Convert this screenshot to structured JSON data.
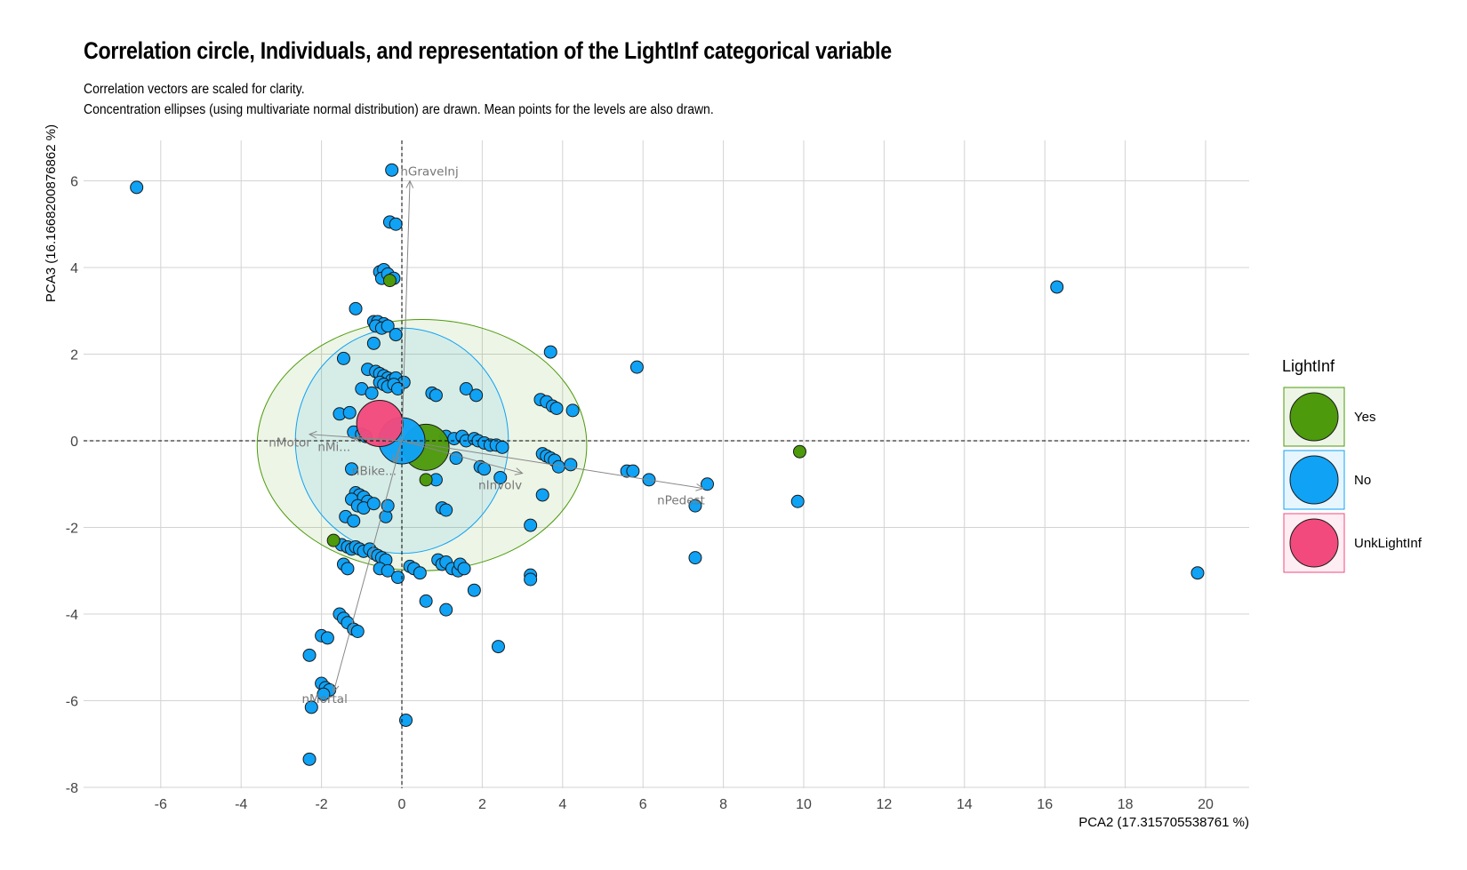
{
  "title": "Correlation circle, Individuals, and representation of the LightInf categorical variable",
  "subtitle_lines": [
    "Correlation vectors are scaled for clarity.",
    "Concentration ellipses (using multivariate normal distribution) are drawn. Mean points for the levels are also drawn."
  ],
  "chart_data": {
    "type": "scatter",
    "xlabel": "PCA2 (17.315705538761 %)",
    "ylabel": "PCA3 (16.1668200876862 %)",
    "xlim": [
      -8,
      21
    ],
    "ylim": [
      -8,
      7
    ],
    "x_ticks": [
      -6,
      -4,
      -2,
      0,
      2,
      4,
      6,
      8,
      10,
      12,
      14,
      16,
      18,
      20
    ],
    "y_ticks": [
      -8,
      -6,
      -4,
      -2,
      0,
      2,
      4,
      6
    ],
    "grid": true,
    "legend": {
      "title": "LightInf",
      "position": "right",
      "items": [
        {
          "label": "Yes",
          "color": "#4d9a0c"
        },
        {
          "label": "No",
          "color": "#0fa2f5"
        },
        {
          "label": "UnkLightInf",
          "color": "#f24a7d"
        }
      ]
    },
    "colors": {
      "Yes": "#4d9a0c",
      "No": "#0fa2f5",
      "UnkLightInf": "#f24a7d",
      "arrow": "#888888",
      "grid": "#d3d3d3"
    },
    "ellipses": [
      {
        "level": "Yes",
        "cx": 0.5,
        "cy": -0.1,
        "rx": 4.1,
        "ry": 2.9,
        "fill": "rgba(77,154,12,0.10)",
        "stroke": "#4d9a0c"
      },
      {
        "level": "No",
        "cx": 0.0,
        "cy": 0.0,
        "rx": 2.65,
        "ry": 2.6,
        "fill": "rgba(15,162,245,0.10)",
        "stroke": "#0fa2f5"
      }
    ],
    "mean_points": [
      {
        "level": "Yes",
        "x": 0.6,
        "y": -0.15
      },
      {
        "level": "No",
        "x": 0.0,
        "y": 0.0
      },
      {
        "level": "UnkLightInf",
        "x": -0.55,
        "y": 0.4
      }
    ],
    "vectors": [
      {
        "label": "nGraveInj",
        "x": 0.2,
        "y": 6.0
      },
      {
        "label": "nMotor",
        "x": -2.3,
        "y": 0.15
      },
      {
        "label": "nMi...",
        "x": -1.2,
        "y": 0.05
      },
      {
        "label": "nBike...",
        "x": -0.2,
        "y": -0.5
      },
      {
        "label": "nInvolv",
        "x": 3.0,
        "y": -0.75
      },
      {
        "label": "nPedest",
        "x": 7.5,
        "y": -1.1
      },
      {
        "label": "nMortal",
        "x": -1.7,
        "y": -5.8
      }
    ],
    "points_yes": [
      {
        "x": -0.3,
        "y": 3.7
      },
      {
        "x": 9.9,
        "y": -0.25
      },
      {
        "x": 0.6,
        "y": -0.9
      },
      {
        "x": -1.7,
        "y": -2.3
      }
    ],
    "points_no": [
      [
        -6.6,
        5.85
      ],
      [
        -0.25,
        6.25
      ],
      [
        -0.3,
        5.05
      ],
      [
        -0.15,
        5.0
      ],
      [
        -0.55,
        3.9
      ],
      [
        -0.45,
        3.95
      ],
      [
        -0.5,
        3.75
      ],
      [
        -0.35,
        3.85
      ],
      [
        -0.2,
        3.75
      ],
      [
        -1.15,
        3.05
      ],
      [
        -0.7,
        2.75
      ],
      [
        -0.6,
        2.75
      ],
      [
        -0.45,
        2.7
      ],
      [
        -0.65,
        2.65
      ],
      [
        -0.5,
        2.6
      ],
      [
        -0.35,
        2.65
      ],
      [
        -0.15,
        2.45
      ],
      [
        -0.7,
        2.25
      ],
      [
        -1.45,
        1.9
      ],
      [
        -0.85,
        1.65
      ],
      [
        -0.65,
        1.6
      ],
      [
        -0.55,
        1.55
      ],
      [
        -0.45,
        1.5
      ],
      [
        -0.35,
        1.45
      ],
      [
        -0.25,
        1.4
      ],
      [
        -0.15,
        1.45
      ],
      [
        0.05,
        1.35
      ],
      [
        -0.55,
        1.35
      ],
      [
        -0.45,
        1.3
      ],
      [
        -0.35,
        1.25
      ],
      [
        -0.2,
        1.3
      ],
      [
        -0.1,
        1.2
      ],
      [
        -1.0,
        1.2
      ],
      [
        -0.75,
        1.1
      ],
      [
        0.75,
        1.1
      ],
      [
        0.85,
        1.05
      ],
      [
        1.6,
        1.2
      ],
      [
        1.85,
        1.05
      ],
      [
        3.7,
        2.05
      ],
      [
        5.85,
        1.7
      ],
      [
        16.3,
        3.55
      ],
      [
        3.45,
        0.95
      ],
      [
        3.6,
        0.9
      ],
      [
        3.75,
        0.8
      ],
      [
        3.85,
        0.75
      ],
      [
        4.25,
        0.7
      ],
      [
        -1.55,
        0.62
      ],
      [
        -1.3,
        0.65
      ],
      [
        -1.2,
        0.2
      ],
      [
        -1.0,
        0.15
      ],
      [
        -0.9,
        0.1
      ],
      [
        1.1,
        0.1
      ],
      [
        1.3,
        0.05
      ],
      [
        1.5,
        0.1
      ],
      [
        1.6,
        0.0
      ],
      [
        1.8,
        0.05
      ],
      [
        1.9,
        0.0
      ],
      [
        2.05,
        -0.05
      ],
      [
        2.2,
        -0.1
      ],
      [
        2.35,
        -0.1
      ],
      [
        2.5,
        -0.15
      ],
      [
        1.35,
        -0.4
      ],
      [
        1.95,
        -0.6
      ],
      [
        2.05,
        -0.65
      ],
      [
        2.45,
        -0.85
      ],
      [
        0.85,
        -0.9
      ],
      [
        3.5,
        -0.3
      ],
      [
        3.6,
        -0.35
      ],
      [
        3.7,
        -0.4
      ],
      [
        3.8,
        -0.45
      ],
      [
        3.9,
        -0.6
      ],
      [
        4.2,
        -0.55
      ],
      [
        5.6,
        -0.7
      ],
      [
        5.75,
        -0.7
      ],
      [
        6.15,
        -0.9
      ],
      [
        7.6,
        -1.0
      ],
      [
        7.3,
        -1.5
      ],
      [
        9.85,
        -1.4
      ],
      [
        19.8,
        -3.05
      ],
      [
        -1.25,
        -0.65
      ],
      [
        -1.15,
        -1.2
      ],
      [
        -1.05,
        -1.25
      ],
      [
        -1.25,
        -1.35
      ],
      [
        -0.95,
        -1.3
      ],
      [
        -0.85,
        -1.4
      ],
      [
        -1.1,
        -1.5
      ],
      [
        -0.95,
        -1.55
      ],
      [
        -0.7,
        -1.45
      ],
      [
        -1.4,
        -1.75
      ],
      [
        -1.2,
        -1.85
      ],
      [
        -0.4,
        -1.75
      ],
      [
        -0.35,
        -1.5
      ],
      [
        3.5,
        -1.25
      ],
      [
        3.2,
        -1.95
      ],
      [
        1.0,
        -1.55
      ],
      [
        1.1,
        -1.6
      ],
      [
        7.3,
        -2.7
      ],
      [
        -1.5,
        -2.4
      ],
      [
        -1.35,
        -2.45
      ],
      [
        -1.25,
        -2.5
      ],
      [
        -1.15,
        -2.45
      ],
      [
        -1.05,
        -2.5
      ],
      [
        -0.95,
        -2.55
      ],
      [
        -0.8,
        -2.5
      ],
      [
        -0.7,
        -2.6
      ],
      [
        -0.6,
        -2.65
      ],
      [
        -0.5,
        -2.7
      ],
      [
        -0.4,
        -2.75
      ],
      [
        -1.45,
        -2.85
      ],
      [
        -1.35,
        -2.95
      ],
      [
        -0.55,
        -2.95
      ],
      [
        -0.35,
        -3.0
      ],
      [
        -0.1,
        -3.15
      ],
      [
        0.2,
        -2.9
      ],
      [
        0.3,
        -2.95
      ],
      [
        0.45,
        -3.05
      ],
      [
        0.9,
        -2.75
      ],
      [
        1.0,
        -2.85
      ],
      [
        1.1,
        -2.8
      ],
      [
        1.25,
        -2.95
      ],
      [
        1.4,
        -3.0
      ],
      [
        1.45,
        -2.85
      ],
      [
        1.55,
        -2.95
      ],
      [
        3.2,
        -3.1
      ],
      [
        3.2,
        -3.2
      ],
      [
        1.8,
        -3.45
      ],
      [
        0.6,
        -3.7
      ],
      [
        1.1,
        -3.9
      ],
      [
        2.4,
        -4.75
      ],
      [
        -1.55,
        -4.0
      ],
      [
        -1.45,
        -4.1
      ],
      [
        -1.35,
        -4.2
      ],
      [
        -1.2,
        -4.35
      ],
      [
        -1.1,
        -4.4
      ],
      [
        -2.0,
        -4.5
      ],
      [
        -1.85,
        -4.55
      ],
      [
        -2.3,
        -4.95
      ],
      [
        -2.0,
        -5.6
      ],
      [
        -1.9,
        -5.7
      ],
      [
        -1.8,
        -5.75
      ],
      [
        -1.95,
        -5.85
      ],
      [
        -2.25,
        -6.15
      ],
      [
        0.1,
        -6.45
      ],
      [
        -2.3,
        -7.35
      ]
    ]
  }
}
